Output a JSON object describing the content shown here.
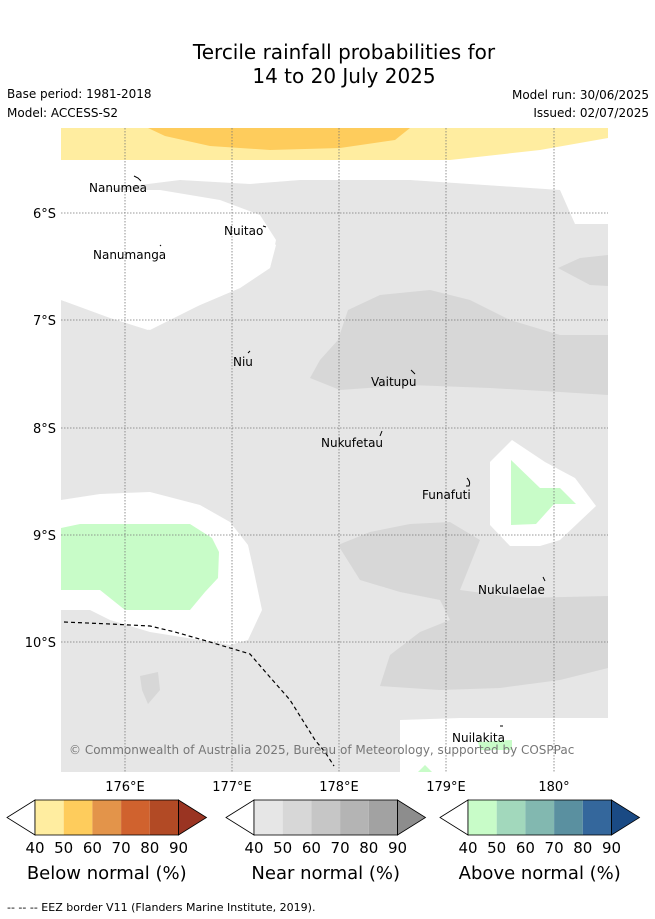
{
  "title": {
    "line1": "Tercile rainfall probabilities for",
    "line2": "14 to 20 July 2025"
  },
  "meta": {
    "base_period": "Base period: 1981-2018",
    "model": "Model: ACCESS-S2",
    "model_run": "Model run: 30/06/2025",
    "issued": "Issued: 02/07/2025"
  },
  "map": {
    "lon_labels": [
      "176°E",
      "177°E",
      "178°E",
      "179°E",
      "180°"
    ],
    "lat_labels": [
      "6°S",
      "7°S",
      "8°S",
      "9°S",
      "10°S"
    ],
    "places": [
      "Nanumea",
      "Nuitao",
      "Nanumanga",
      "Niu",
      "Vaitupu",
      "Nukufetau",
      "Funafuti",
      "Nukulaelae",
      "Nuilakita"
    ],
    "copyright": "© Commonwealth of Australia 2025, Bureau of Meteorology, supported by COSPPac"
  },
  "colorbars": [
    {
      "title": "Below normal (%)",
      "ticks": [
        "40",
        "50",
        "60",
        "70",
        "80",
        "90"
      ],
      "colors": [
        "#ffffff",
        "#ffeda0",
        "#fecc5c",
        "#e3944a",
        "#d0622e",
        "#b24a25",
        "#9a3422"
      ]
    },
    {
      "title": "Near normal (%)",
      "ticks": [
        "40",
        "50",
        "60",
        "70",
        "80",
        "90"
      ],
      "colors": [
        "#ffffff",
        "#e6e6e6",
        "#d7d7d7",
        "#c6c6c6",
        "#b4b4b4",
        "#a2a2a2",
        "#8d8d8d"
      ]
    },
    {
      "title": "Above normal (%)",
      "ticks": [
        "40",
        "50",
        "60",
        "70",
        "80",
        "90"
      ],
      "colors": [
        "#ffffff",
        "#c8fcc8",
        "#a2d8bc",
        "#82b8b0",
        "#5a90a0",
        "#34679c",
        "#1a4a84"
      ]
    }
  ],
  "footnote": "--  --  -- EEZ border V11 (Flanders Marine Institute, 2019)."
}
